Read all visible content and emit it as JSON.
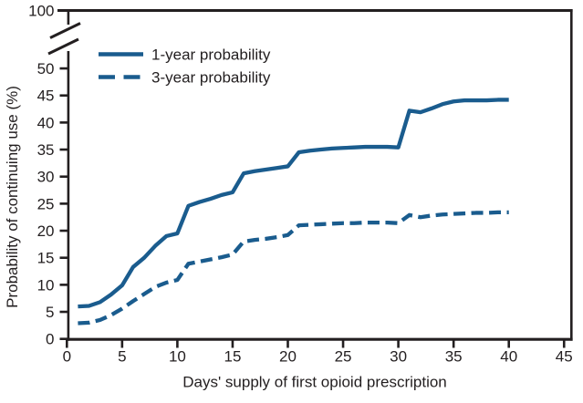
{
  "figure": {
    "background": "#ffffff",
    "axis_color": "#231f20",
    "text_color": "#231f20",
    "accent_blue": "#1a5c8e"
  },
  "chart_data": {
    "type": "line",
    "title": "",
    "xlabel": "Days' supply of first opioid prescription",
    "ylabel": "Probability of continuing use (%)",
    "x_ticks": [
      0,
      5,
      10,
      15,
      20,
      25,
      30,
      35,
      40,
      45
    ],
    "y_ticks": [
      0,
      5,
      10,
      15,
      20,
      25,
      30,
      35,
      40,
      45,
      50
    ],
    "y_axis_break_top_label": "100",
    "xlim": [
      0,
      45.8
    ],
    "ylim": [
      0,
      50
    ],
    "grid": false,
    "legend_position": "top-left-inside",
    "x": [
      1,
      2,
      3,
      4,
      5,
      6,
      7,
      8,
      9,
      10,
      11,
      12,
      13,
      14,
      15,
      16,
      17,
      18,
      19,
      20,
      21,
      22,
      23,
      24,
      25,
      26,
      27,
      28,
      29,
      30,
      31,
      32,
      33,
      34,
      35,
      36,
      37,
      38,
      39,
      40
    ],
    "series": [
      {
        "name": "1-year probability",
        "style": "solid",
        "color": "#1a5c8e",
        "values": [
          6.0,
          6.1,
          6.8,
          8.2,
          9.9,
          13.3,
          15.0,
          17.2,
          19.0,
          19.5,
          24.6,
          25.3,
          25.9,
          26.6,
          27.1,
          30.6,
          31.0,
          31.3,
          31.6,
          31.9,
          34.5,
          34.8,
          35.0,
          35.2,
          35.3,
          35.4,
          35.5,
          35.5,
          35.5,
          35.4,
          42.2,
          41.9,
          42.6,
          43.4,
          43.9,
          44.1,
          44.1,
          44.1,
          44.2,
          44.2
        ]
      },
      {
        "name": "3-year probability",
        "style": "dashed",
        "color": "#1a5c8e",
        "values": [
          2.9,
          3.0,
          3.5,
          4.4,
          5.6,
          7.0,
          8.3,
          9.6,
          10.4,
          10.9,
          13.9,
          14.3,
          14.7,
          15.1,
          15.6,
          18.0,
          18.3,
          18.5,
          18.8,
          19.2,
          21.0,
          21.1,
          21.2,
          21.3,
          21.4,
          21.4,
          21.5,
          21.5,
          21.5,
          21.4,
          22.9,
          22.5,
          22.8,
          23.0,
          23.1,
          23.2,
          23.3,
          23.3,
          23.4,
          23.4
        ]
      }
    ]
  }
}
